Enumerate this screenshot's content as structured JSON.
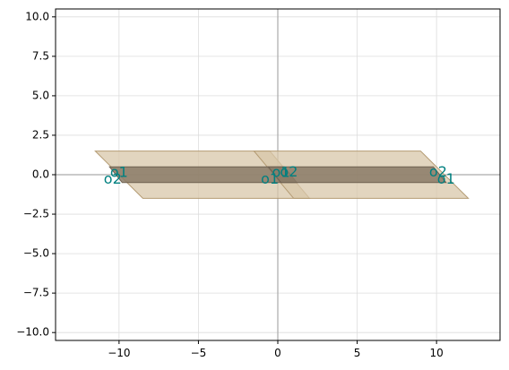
{
  "chart_data": {
    "type": "scatter",
    "title": "",
    "xlabel": "",
    "ylabel": "",
    "xlim": [
      -14,
      14
    ],
    "ylim": [
      -10.5,
      10.5
    ],
    "x_ticks": [
      -10,
      -5,
      0,
      5,
      10
    ],
    "x_tick_labels": [
      "−10",
      "−5",
      "0",
      "5",
      "10"
    ],
    "y_ticks": [
      10,
      7.5,
      5,
      2.5,
      0,
      -2.5,
      -5,
      -7.5,
      -10
    ],
    "y_tick_labels": [
      "10.0",
      "7.5",
      "5.0",
      "2.5",
      "0.0",
      "−2.5",
      "−5.0",
      "−7.5",
      "−10.0"
    ],
    "grid": true,
    "axis_lines_at_zero": true,
    "colors": {
      "cladding_fill": "#d8c7aa",
      "cladding_stroke": "#b49b73",
      "core_fill": "#8a7a66",
      "core_stroke": "#6e6050",
      "port_label": "#008080",
      "grid": "#dddddd",
      "axis_zero": "#aaaaaa"
    },
    "shapes": [
      {
        "name": "left-cladding",
        "kind": "cladding",
        "points": [
          [
            -11.5,
            1.5
          ],
          [
            -0.5,
            1.5
          ],
          [
            2.0,
            -1.5
          ],
          [
            -8.5,
            -1.5
          ]
        ]
      },
      {
        "name": "right-cladding",
        "kind": "cladding",
        "points": [
          [
            -1.5,
            1.5
          ],
          [
            9.0,
            1.5
          ],
          [
            12.0,
            -1.5
          ],
          [
            1.0,
            -1.5
          ]
        ]
      },
      {
        "name": "left-core",
        "kind": "core",
        "points": [
          [
            -10.6,
            0.5
          ],
          [
            0.4,
            0.5
          ],
          [
            1.2,
            -0.5
          ],
          [
            -9.8,
            -0.5
          ]
        ]
      },
      {
        "name": "right-core",
        "kind": "core",
        "points": [
          [
            -0.6,
            0.5
          ],
          [
            9.8,
            0.5
          ],
          [
            10.6,
            -0.5
          ],
          [
            0.2,
            -0.5
          ]
        ]
      }
    ],
    "port_labels": [
      {
        "text": "o1",
        "x": -10.0,
        "y": 0.1
      },
      {
        "text": "o2",
        "x": -10.4,
        "y": -0.3
      },
      {
        "text": "o1",
        "x": 0.2,
        "y": 0.1
      },
      {
        "text": "o2",
        "x": 0.7,
        "y": 0.15
      },
      {
        "text": "o1",
        "x": -0.5,
        "y": -0.3
      },
      {
        "text": "o2",
        "x": 10.1,
        "y": 0.15
      },
      {
        "text": "o1",
        "x": 10.6,
        "y": -0.3
      }
    ]
  }
}
